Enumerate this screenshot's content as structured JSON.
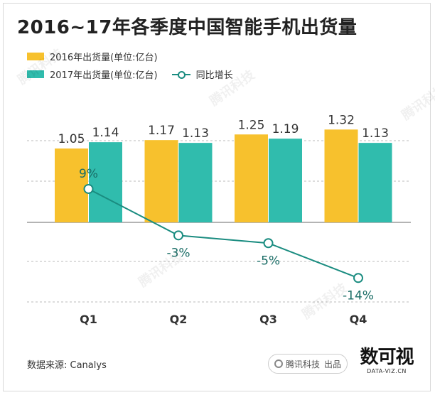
{
  "title": "2016~17年各季度中国智能手机出货量",
  "legend": {
    "s2016": "2016年出货量(单位:亿台)",
    "s2017": "2017年出货量(单位:亿台)",
    "growth": "同比增长"
  },
  "source": "数据来源: Canalys",
  "brand": {
    "name": "腾讯科技",
    "publisher": "出品"
  },
  "logo": {
    "main": "数可视",
    "sub": "DATA-VIZ.CN"
  },
  "watermark": "腾讯科技",
  "colors": {
    "s2016": "#f7c12d",
    "s2017": "#30bcad",
    "growth": "#1a8c80"
  },
  "chart_data": {
    "type": "bar",
    "title": "2016~17年各季度中国智能手机出货量",
    "categories": [
      "Q1",
      "Q2",
      "Q3",
      "Q4"
    ],
    "series": [
      {
        "name": "2016年出货量(单位:亿台)",
        "values": [
          1.05,
          1.17,
          1.25,
          1.32
        ],
        "labels": [
          "1.05",
          "1.17",
          "1.25",
          "1.32"
        ]
      },
      {
        "name": "2017年出货量(单位:亿台)",
        "values": [
          1.14,
          1.13,
          1.19,
          1.13
        ],
        "labels": [
          "1.14",
          "1.13",
          "1.19",
          "1.13"
        ]
      }
    ],
    "line_series": {
      "name": "同比增长",
      "values": [
        9,
        -3,
        -5,
        -14
      ],
      "labels": [
        "9%",
        "-3%",
        "-5%",
        "-14%"
      ]
    },
    "grid": true
  }
}
